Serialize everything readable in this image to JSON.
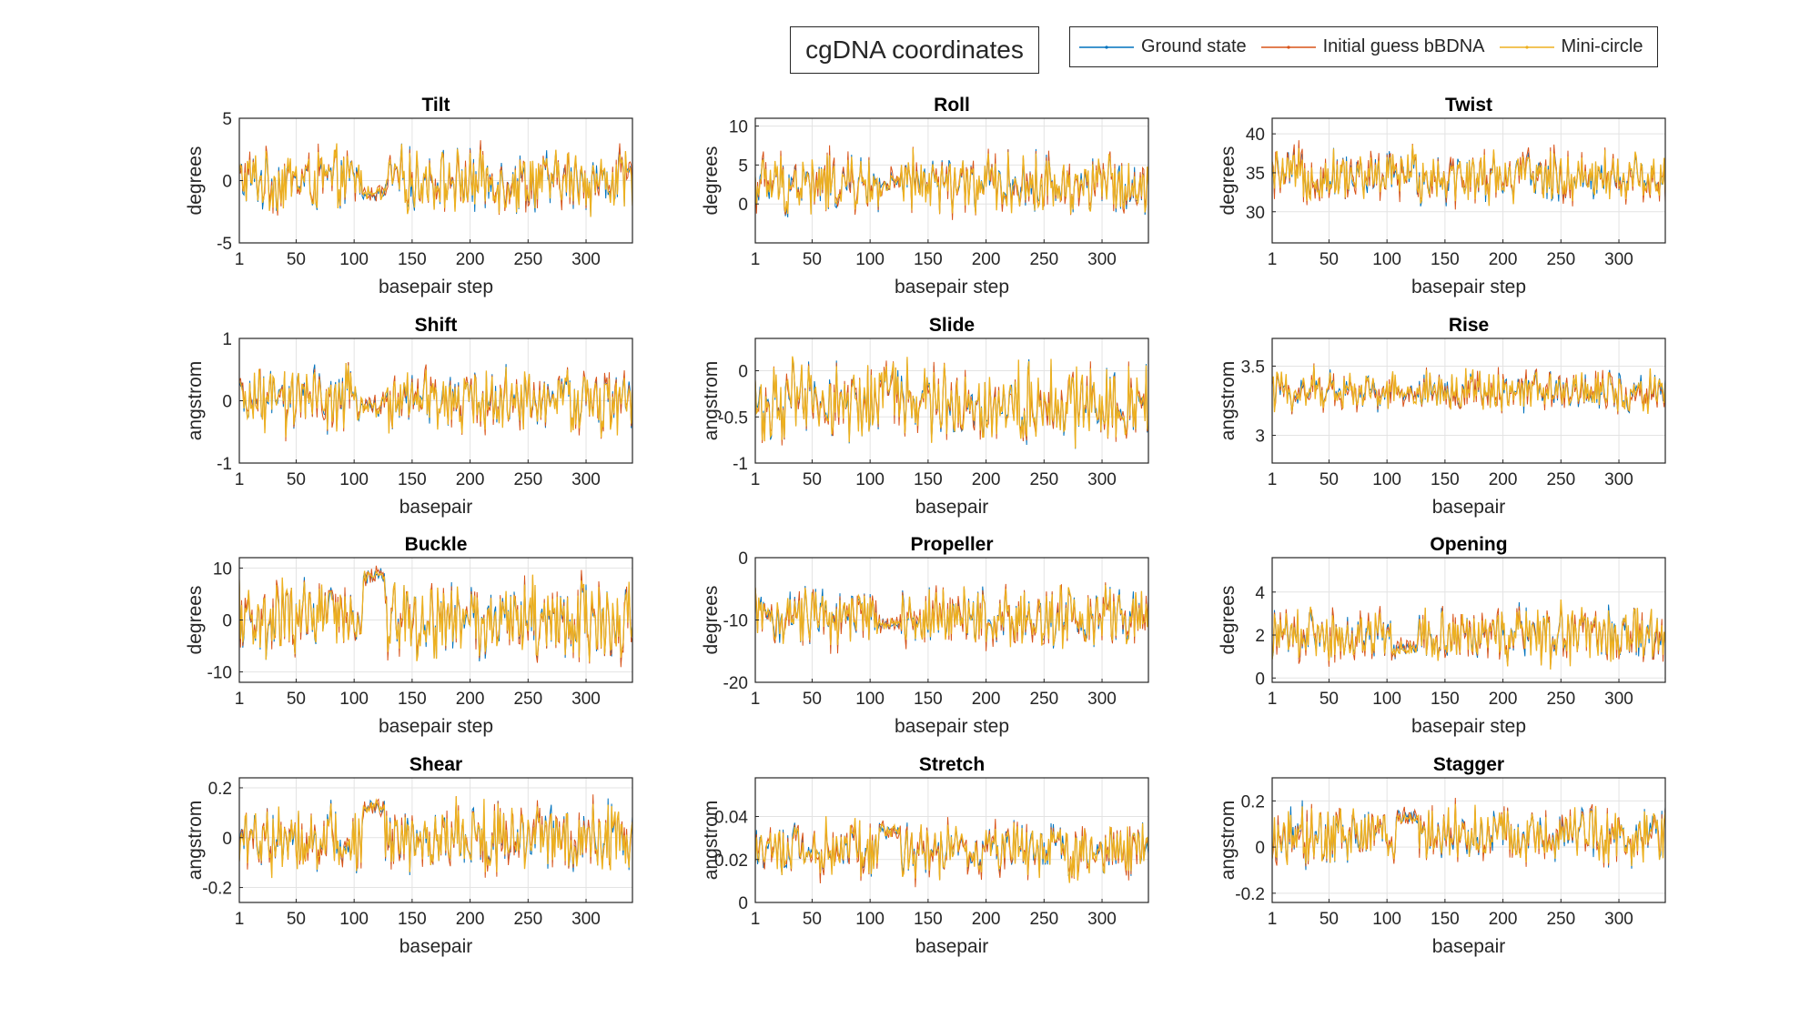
{
  "figure": {
    "title": "cgDNA coordinates"
  },
  "legend": {
    "entries": [
      {
        "label": "Ground state",
        "color": "#0072BD"
      },
      {
        "label": "Initial guess bBDNA",
        "color": "#D95319"
      },
      {
        "label": "Mini-circle",
        "color": "#EDB120"
      }
    ]
  },
  "chart_data": [
    {
      "type": "line",
      "title": "Tilt",
      "xlabel": "basepair step",
      "ylabel": "degrees",
      "xlim": [
        1,
        340
      ],
      "ylim": [
        -5,
        5
      ],
      "xticks": [
        1,
        50,
        100,
        150,
        200,
        250,
        300
      ],
      "yticks": [
        -5,
        0,
        5
      ],
      "series_params": {
        "center": 0,
        "amplitude": 2.6,
        "special_center": -1,
        "special_amplitude": 0.4
      }
    },
    {
      "type": "line",
      "title": "Roll",
      "xlabel": "basepair step",
      "ylabel": "degrees",
      "xlim": [
        1,
        340
      ],
      "ylim": [
        -5,
        11
      ],
      "xticks": [
        1,
        50,
        100,
        150,
        200,
        250,
        300
      ],
      "yticks": [
        0,
        5,
        10
      ],
      "series_params": {
        "center": 2.5,
        "amplitude": 4.0,
        "special_center": 2.5,
        "special_amplitude": 1.5
      }
    },
    {
      "type": "line",
      "title": "Twist",
      "xlabel": "basepair step",
      "ylabel": "degrees",
      "xlim": [
        1,
        340
      ],
      "ylim": [
        26,
        42
      ],
      "xticks": [
        1,
        50,
        100,
        150,
        200,
        250,
        300
      ],
      "yticks": [
        30,
        35,
        40
      ],
      "series_params": {
        "center": 34.5,
        "amplitude": 3.5,
        "special_center": 35,
        "special_amplitude": 4
      }
    },
    {
      "type": "line",
      "title": "Shift",
      "xlabel": "basepair",
      "ylabel": "angstrom",
      "xlim": [
        1,
        340
      ],
      "ylim": [
        -1,
        1
      ],
      "xticks": [
        1,
        50,
        100,
        150,
        200,
        250,
        300
      ],
      "yticks": [
        -1,
        0,
        1
      ],
      "series_params": {
        "center": 0,
        "amplitude": 0.55,
        "special_center": -0.1,
        "special_amplitude": 0.2
      }
    },
    {
      "type": "line",
      "title": "Slide",
      "xlabel": "basepair",
      "ylabel": "angstrom",
      "xlim": [
        1,
        340
      ],
      "ylim": [
        -1,
        0.35
      ],
      "xticks": [
        1,
        50,
        100,
        150,
        200,
        250,
        300
      ],
      "yticks": [
        -1,
        -0.5,
        0
      ],
      "series_params": {
        "center": -0.35,
        "amplitude": 0.45,
        "special_center": -0.2,
        "special_amplitude": 0.35
      }
    },
    {
      "type": "line",
      "title": "Rise",
      "xlabel": "basepair",
      "ylabel": "angstrom",
      "xlim": [
        1,
        340
      ],
      "ylim": [
        2.8,
        3.7
      ],
      "xticks": [
        1,
        50,
        100,
        150,
        200,
        250,
        300
      ],
      "yticks": [
        3,
        3.5
      ],
      "series_params": {
        "center": 3.32,
        "amplitude": 0.16,
        "special_center": 3.3,
        "special_amplitude": 0.06
      }
    },
    {
      "type": "line",
      "title": "Buckle",
      "xlabel": "basepair step",
      "ylabel": "degrees",
      "xlim": [
        1,
        340
      ],
      "ylim": [
        -12,
        12
      ],
      "xticks": [
        1,
        50,
        100,
        150,
        200,
        250,
        300
      ],
      "yticks": [
        -10,
        0,
        10
      ],
      "series_params": {
        "center": 0,
        "amplitude": 8,
        "special_center": 8.5,
        "special_amplitude": 1
      }
    },
    {
      "type": "line",
      "title": "Propeller",
      "xlabel": "basepair step",
      "ylabel": "degrees",
      "xlim": [
        1,
        340
      ],
      "ylim": [
        -20,
        0
      ],
      "xticks": [
        1,
        50,
        100,
        150,
        200,
        250,
        300
      ],
      "yticks": [
        -20,
        -10,
        0
      ],
      "series_params": {
        "center": -9.5,
        "amplitude": 5,
        "special_center": -10.5,
        "special_amplitude": 1
      }
    },
    {
      "type": "line",
      "title": "Opening",
      "xlabel": "basepair step",
      "ylabel": "degrees",
      "xlim": [
        1,
        340
      ],
      "ylim": [
        -0.2,
        5.6
      ],
      "xticks": [
        1,
        50,
        100,
        150,
        200,
        250,
        300
      ],
      "yticks": [
        0,
        2,
        4
      ],
      "series_params": {
        "center": 2,
        "amplitude": 1.4,
        "special_center": 1.4,
        "special_amplitude": 0.2
      }
    },
    {
      "type": "line",
      "title": "Shear",
      "xlabel": "basepair",
      "ylabel": "angstrom",
      "xlim": [
        1,
        340
      ],
      "ylim": [
        -0.26,
        0.24
      ],
      "xticks": [
        1,
        50,
        100,
        150,
        200,
        250,
        300
      ],
      "yticks": [
        -0.2,
        0,
        0.2
      ],
      "series_params": {
        "center": 0,
        "amplitude": 0.15,
        "special_center": 0.12,
        "special_amplitude": 0.02
      }
    },
    {
      "type": "line",
      "title": "Stretch",
      "xlabel": "basepair",
      "ylabel": "angstrom",
      "xlim": [
        1,
        340
      ],
      "ylim": [
        0,
        0.058
      ],
      "xticks": [
        1,
        50,
        100,
        150,
        200,
        250,
        300
      ],
      "yticks": [
        0,
        0.02,
        0.04
      ],
      "series_params": {
        "center": 0.025,
        "amplitude": 0.014,
        "special_center": 0.033,
        "special_amplitude": 0.003
      }
    },
    {
      "type": "line",
      "title": "Stagger",
      "xlabel": "basepair",
      "ylabel": "angstrom",
      "xlim": [
        1,
        340
      ],
      "ylim": [
        -0.24,
        0.3
      ],
      "xticks": [
        1,
        50,
        100,
        150,
        200,
        250,
        300
      ],
      "yticks": [
        -0.2,
        0,
        0.2
      ],
      "series_params": {
        "center": 0.05,
        "amplitude": 0.13,
        "special_center": 0.13,
        "special_amplitude": 0.02
      }
    }
  ]
}
